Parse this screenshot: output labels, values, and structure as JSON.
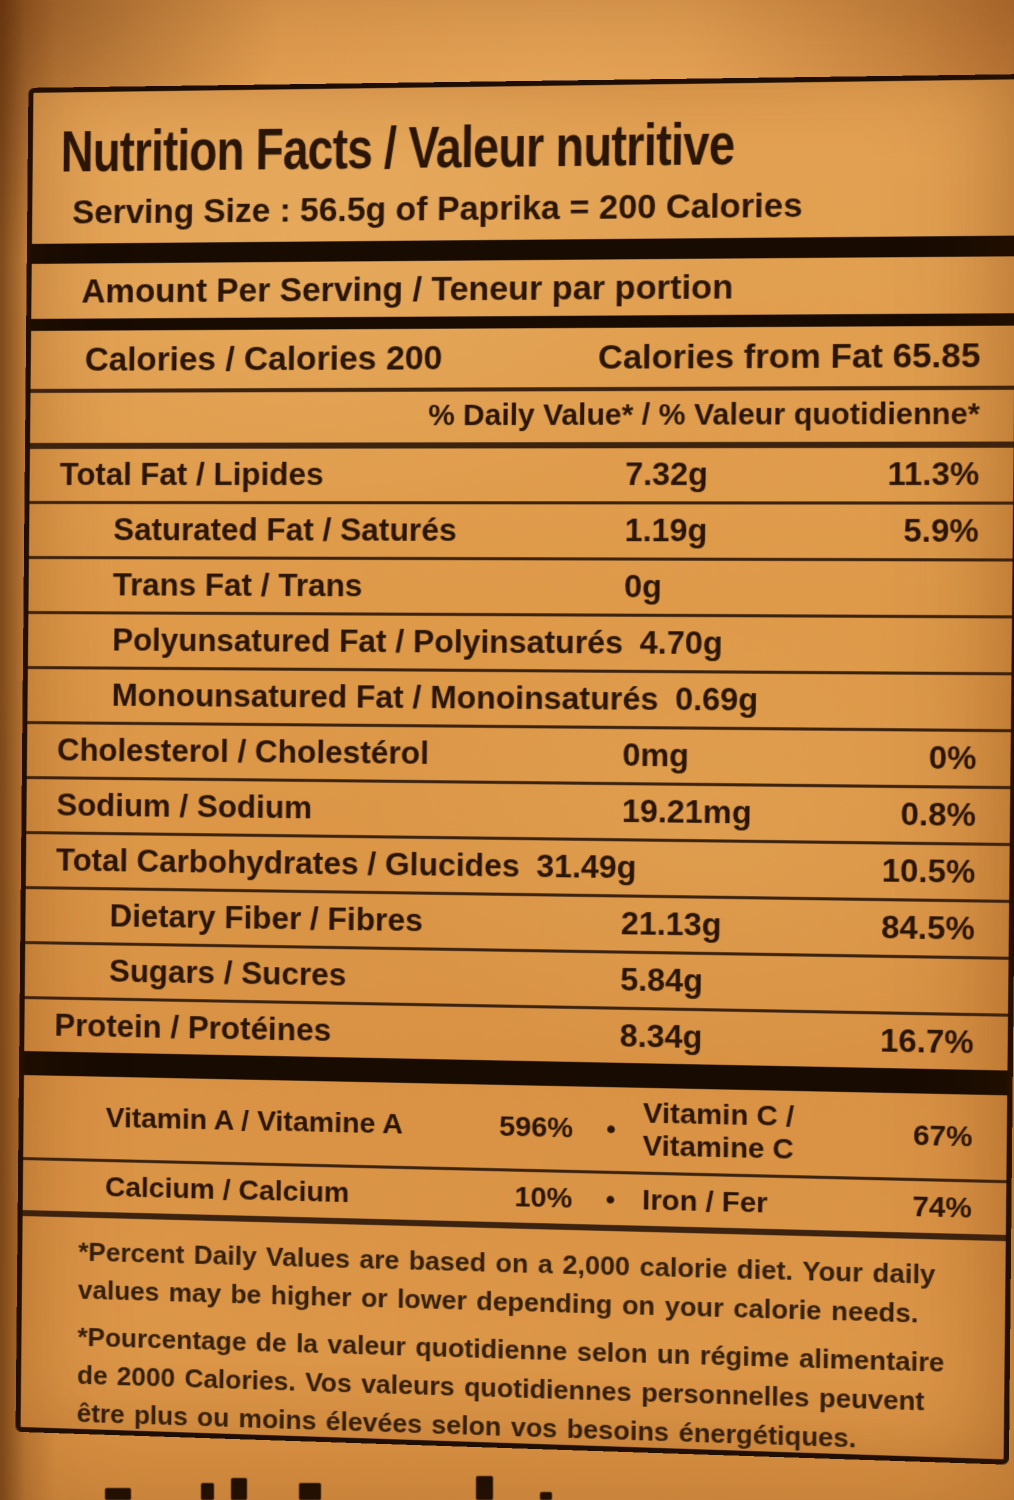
{
  "colors": {
    "package_orange": "#dd9546",
    "label_orange": "#de9a49",
    "ink": "#2a1507",
    "divider_black": "#170b02",
    "rule_brown": "#3c2310"
  },
  "label": {
    "title": "Nutrition Facts / Valeur nutritive",
    "serving_size": "Serving Size : 56.5g of Paprika = 200 Calories",
    "amount_per_serving": "Amount Per Serving / Teneur par portion",
    "calories": {
      "left": "Calories / Calories 200",
      "right": "Calories from Fat 65.85"
    },
    "daily_value_header": "% Daily Value* / % Valeur quotidienne*",
    "nutrients": [
      {
        "label": "Total Fat / Lipides",
        "amount": "7.32g",
        "percent": "11.3%"
      },
      {
        "label": "Saturated Fat / Saturés",
        "amount": "1.19g",
        "percent": "5.9%"
      },
      {
        "label": "Trans Fat / Trans",
        "amount": "0g",
        "percent": ""
      },
      {
        "label": "Polyunsatured Fat / Polyinsaturés",
        "amount": "4.70g",
        "percent": ""
      },
      {
        "label": "Monounsatured Fat / Monoinsaturés",
        "amount": "0.69g",
        "percent": ""
      },
      {
        "label": "Cholesterol / Cholestérol",
        "amount": "0mg",
        "percent": "0%"
      },
      {
        "label": "Sodium / Sodium",
        "amount": "19.21mg",
        "percent": "0.8%"
      },
      {
        "label": "Total Carbohydrates / Glucides",
        "amount": "31.49g",
        "percent": "10.5%"
      },
      {
        "label": "Dietary Fiber / Fibres",
        "amount": "21.13g",
        "percent": "84.5%"
      },
      {
        "label": "Sugars / Sucres",
        "amount": "5.84g",
        "percent": ""
      },
      {
        "label": "Protein / Protéines",
        "amount": "8.34g",
        "percent": "16.7%"
      }
    ],
    "vitamins": [
      {
        "left_label": "Vitamin A / Vitamine A",
        "left_value": "596%",
        "bullet": "•",
        "right_label": "Vitamin C / Vitamine C",
        "right_value": "67%"
      },
      {
        "left_label": "Calcium / Calcium",
        "left_value": "10%",
        "bullet": "•",
        "right_label": "Iron / Fer",
        "right_value": "74%"
      }
    ],
    "footnote_en": "*Percent Daily Values are based on a 2,000 calorie diet. Your daily values may be higher or lower depending on your calorie needs.",
    "footnote_fr": "*Pourcentage de la valeur quotidienne selon un régime alimentaire de 2000 Calories. Vos valeurs quotidiennes personnelles peuvent être plus ou moins élevées selon vos besoins énergétiques."
  }
}
